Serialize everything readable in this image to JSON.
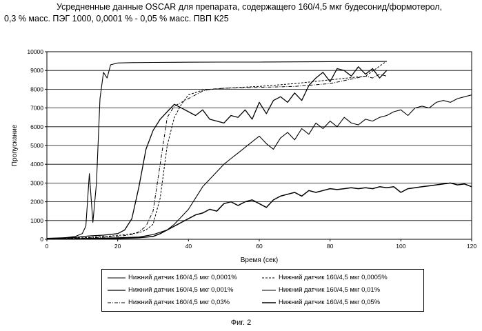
{
  "title_line1": "Усредненные данные OSCAR для препарата, содержащего 160/4,5 мкг  будесонид/формотерол,",
  "title_line2": "0,3 % масс. ПЭГ 1000, 0,0001 % - 0,05 % масс. ПВП К25",
  "caption": "Фиг. 2",
  "chart_data": {
    "type": "line",
    "xlabel": "Время (сек)",
    "ylabel": "Пропускание",
    "xlim": [
      0,
      120
    ],
    "ylim": [
      0,
      10000
    ],
    "xticks": [
      0,
      20,
      40,
      60,
      80,
      100,
      120
    ],
    "yticks": [
      0,
      1000,
      2000,
      3000,
      4000,
      5000,
      6000,
      7000,
      8000,
      9000,
      10000
    ],
    "grid": "horizontal",
    "series": [
      {
        "name": "Нижний датчик 160/4,5 мкг 0,0001%",
        "style": "solid",
        "x": [
          0,
          4,
          8,
          10,
          11,
          12,
          13,
          14,
          15,
          16,
          17,
          18,
          20,
          24,
          30,
          40,
          50,
          60,
          70,
          80,
          90,
          96
        ],
        "y": [
          50,
          60,
          150,
          300,
          700,
          3500,
          900,
          3000,
          7500,
          8900,
          8600,
          9300,
          9400,
          9420,
          9430,
          9440,
          9450,
          9450,
          9460,
          9470,
          9470,
          9480
        ]
      },
      {
        "name": "Нижний датчик 160/4,5 мкг 0,0005%",
        "style": "dash",
        "x": [
          0,
          10,
          20,
          26,
          28,
          30,
          32,
          34,
          36,
          38,
          40,
          44,
          50,
          60,
          70,
          80,
          90,
          96
        ],
        "y": [
          20,
          80,
          200,
          350,
          500,
          800,
          2200,
          5000,
          6500,
          7200,
          7700,
          7950,
          8050,
          8150,
          8300,
          8500,
          8700,
          9500
        ]
      },
      {
        "name": "Нижний датчик 160/4,5 мкг 0,001%",
        "style": "solid",
        "x": [
          0,
          8,
          12,
          16,
          20,
          22,
          24,
          26,
          28,
          30,
          32,
          34,
          36,
          38,
          40,
          42,
          44,
          46,
          48,
          50,
          52,
          54,
          56,
          58,
          60,
          62,
          64,
          66,
          68,
          70,
          72,
          74,
          76,
          78,
          80,
          82,
          84,
          86,
          88,
          90,
          92,
          94,
          96
        ],
        "y": [
          50,
          100,
          180,
          220,
          300,
          500,
          1100,
          2800,
          4800,
          5800,
          6400,
          6800,
          7200,
          7000,
          6800,
          6600,
          6900,
          6400,
          6300,
          6200,
          6600,
          6500,
          6900,
          6400,
          7300,
          6700,
          7400,
          7600,
          7300,
          7800,
          7400,
          8200,
          8600,
          8900,
          8400,
          9100,
          9000,
          8700,
          9200,
          8800,
          9100,
          8600,
          9000
        ]
      },
      {
        "name": "Нижний датчик 160/4,5 мкг 0,01%",
        "style": "solid",
        "x": [
          0,
          10,
          20,
          26,
          30,
          34,
          36,
          38,
          40,
          42,
          44,
          46,
          48,
          50,
          52,
          54,
          56,
          58,
          60,
          62,
          64,
          66,
          68,
          70,
          72,
          74,
          76,
          78,
          80,
          82,
          84,
          86,
          88,
          90,
          92,
          94,
          96,
          98,
          100,
          102,
          104,
          106,
          108,
          110,
          112,
          114,
          116,
          118,
          120
        ],
        "y": [
          20,
          40,
          80,
          120,
          250,
          500,
          800,
          1200,
          1600,
          2200,
          2800,
          3200,
          3600,
          4000,
          4300,
          4600,
          4900,
          5200,
          5500,
          5100,
          4800,
          5400,
          5700,
          5300,
          5900,
          5600,
          6200,
          5900,
          6300,
          6000,
          6500,
          6200,
          6100,
          6400,
          6300,
          6500,
          6600,
          6800,
          6900,
          6600,
          7000,
          7100,
          7000,
          7300,
          7400,
          7300,
          7500,
          7600,
          7700
        ]
      },
      {
        "name": "Нижний датчик 160/4,5 мкг 0,03%",
        "style": "dashdot",
        "x": [
          0,
          10,
          20,
          24,
          26,
          28,
          30,
          32,
          34,
          36,
          38,
          40,
          42,
          44,
          46,
          50,
          60,
          70,
          80,
          85,
          90,
          92,
          94,
          96
        ],
        "y": [
          20,
          60,
          150,
          250,
          400,
          700,
          1500,
          4000,
          6500,
          7100,
          7300,
          7500,
          7700,
          7900,
          8000,
          8050,
          8100,
          8150,
          8300,
          8500,
          8700,
          8600,
          8800,
          8700
        ]
      },
      {
        "name": "Нижний датчик 160/4,5 мкг 0,05%",
        "style": "solid",
        "x": [
          0,
          10,
          20,
          26,
          30,
          32,
          34,
          36,
          38,
          40,
          42,
          44,
          46,
          48,
          50,
          52,
          54,
          56,
          58,
          60,
          62,
          64,
          66,
          68,
          70,
          72,
          74,
          76,
          78,
          80,
          82,
          84,
          86,
          88,
          90,
          92,
          94,
          96,
          98,
          100,
          102,
          104,
          106,
          108,
          110,
          112,
          114,
          116,
          118,
          120
        ],
        "y": [
          10,
          20,
          40,
          80,
          150,
          300,
          500,
          700,
          900,
          1100,
          1300,
          1400,
          1600,
          1500,
          1900,
          2000,
          1800,
          2000,
          2100,
          1900,
          1700,
          2100,
          2300,
          2400,
          2500,
          2300,
          2600,
          2500,
          2600,
          2700,
          2650,
          2700,
          2750,
          2700,
          2750,
          2700,
          2800,
          2750,
          2800,
          2500,
          2700,
          2750,
          2800,
          2850,
          2900,
          2950,
          3000,
          2900,
          2950,
          2800
        ]
      }
    ],
    "legend_position": "bottom"
  }
}
